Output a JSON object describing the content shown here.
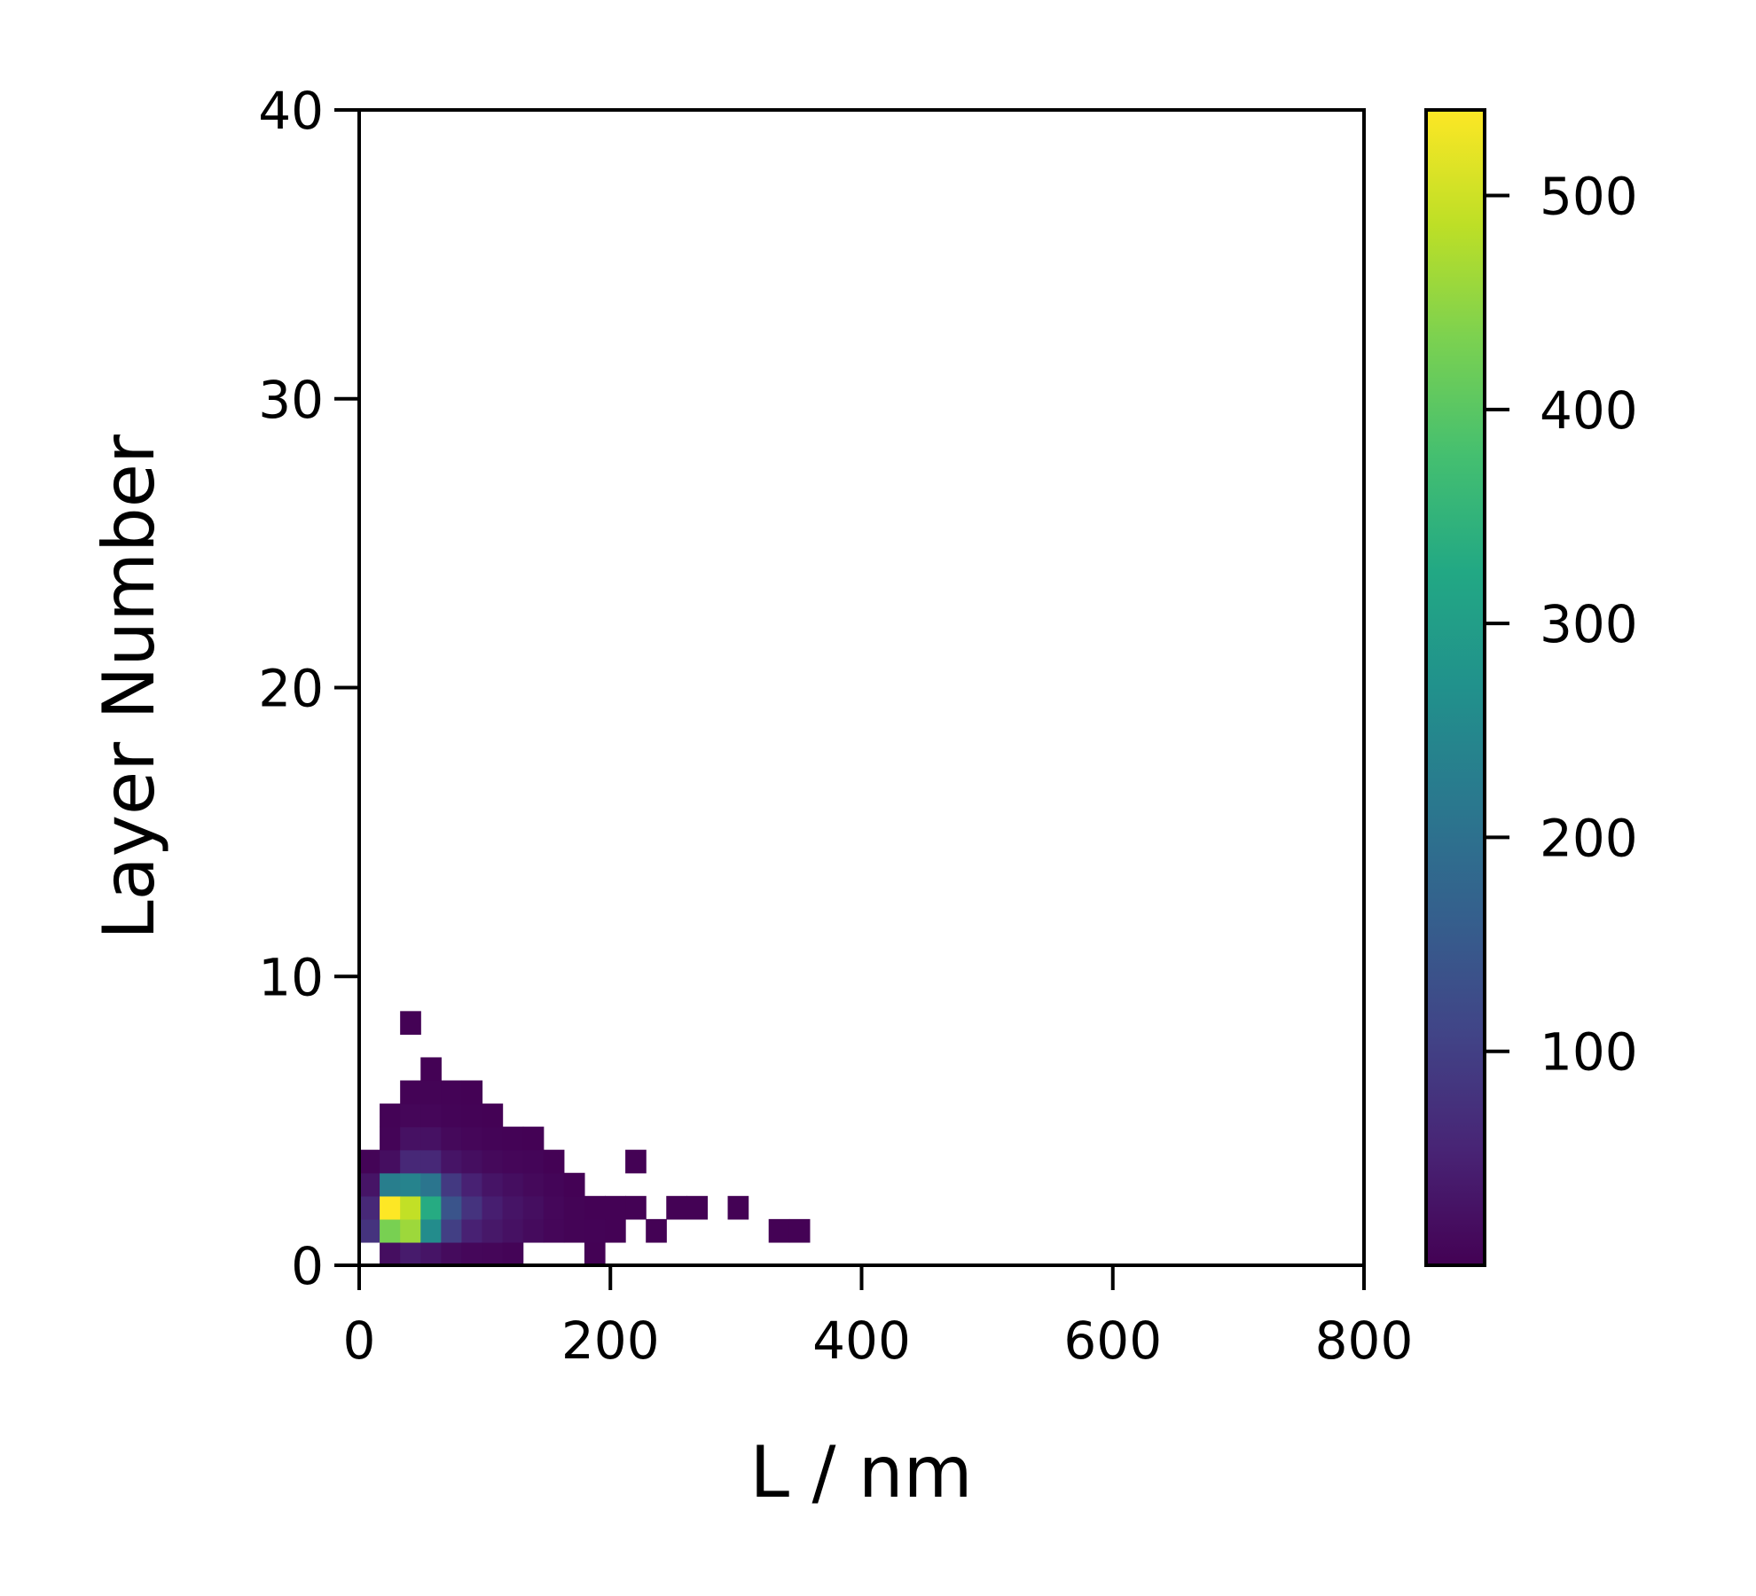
{
  "chart_data": {
    "type": "heatmap",
    "title": "",
    "xlabel": "L / nm",
    "ylabel": "Layer Number",
    "xlim": [
      0,
      800
    ],
    "ylim": [
      0,
      40
    ],
    "x_ticks": [
      0,
      200,
      400,
      600,
      800
    ],
    "x_tick_labels": [
      "0",
      "200",
      "400",
      "600",
      "800"
    ],
    "y_ticks": [
      0,
      10,
      20,
      30,
      40
    ],
    "y_tick_labels": [
      "0",
      "10",
      "20",
      "30",
      "40"
    ],
    "colorbar": {
      "colormap": "viridis",
      "range": [
        0,
        540
      ],
      "ticks": [
        100,
        200,
        300,
        400,
        500
      ],
      "tick_labels": [
        "100",
        "200",
        "300",
        "400",
        "500"
      ]
    },
    "bin_width_x": 16.3,
    "bin_height_y": 0.8,
    "bins": [
      {
        "x": 0,
        "y": 0.8,
        "value": 80
      },
      {
        "x": 0,
        "y": 1.6,
        "value": 60
      },
      {
        "x": 0,
        "y": 2.4,
        "value": 30
      },
      {
        "x": 0,
        "y": 3.2,
        "value": 5
      },
      {
        "x": 16.3,
        "y": 0,
        "value": 20
      },
      {
        "x": 16.3,
        "y": 0.8,
        "value": 430
      },
      {
        "x": 16.3,
        "y": 1.6,
        "value": 540
      },
      {
        "x": 16.3,
        "y": 2.4,
        "value": 230
      },
      {
        "x": 16.3,
        "y": 3.2,
        "value": 20
      },
      {
        "x": 16.3,
        "y": 4.0,
        "value": 5
      },
      {
        "x": 16.3,
        "y": 4.8,
        "value": 3
      },
      {
        "x": 32.6,
        "y": 0,
        "value": 40
      },
      {
        "x": 32.6,
        "y": 0.8,
        "value": 460
      },
      {
        "x": 32.6,
        "y": 1.6,
        "value": 490
      },
      {
        "x": 32.6,
        "y": 2.4,
        "value": 240
      },
      {
        "x": 32.6,
        "y": 3.2,
        "value": 60
      },
      {
        "x": 32.6,
        "y": 4.0,
        "value": 25
      },
      {
        "x": 32.6,
        "y": 4.8,
        "value": 8
      },
      {
        "x": 32.6,
        "y": 5.6,
        "value": 3
      },
      {
        "x": 32.6,
        "y": 8.0,
        "value": 2
      },
      {
        "x": 48.9,
        "y": 0,
        "value": 30
      },
      {
        "x": 48.9,
        "y": 0.8,
        "value": 260
      },
      {
        "x": 48.9,
        "y": 1.6,
        "value": 330
      },
      {
        "x": 48.9,
        "y": 2.4,
        "value": 210
      },
      {
        "x": 48.9,
        "y": 3.2,
        "value": 60
      },
      {
        "x": 48.9,
        "y": 4.0,
        "value": 25
      },
      {
        "x": 48.9,
        "y": 4.8,
        "value": 8
      },
      {
        "x": 48.9,
        "y": 5.6,
        "value": 4
      },
      {
        "x": 48.9,
        "y": 6.4,
        "value": 2
      },
      {
        "x": 65.2,
        "y": 0,
        "value": 15
      },
      {
        "x": 65.2,
        "y": 0.8,
        "value": 100
      },
      {
        "x": 65.2,
        "y": 1.6,
        "value": 140
      },
      {
        "x": 65.2,
        "y": 2.4,
        "value": 90
      },
      {
        "x": 65.2,
        "y": 3.2,
        "value": 30
      },
      {
        "x": 65.2,
        "y": 4.0,
        "value": 12
      },
      {
        "x": 65.2,
        "y": 4.8,
        "value": 5
      },
      {
        "x": 65.2,
        "y": 5.6,
        "value": 3
      },
      {
        "x": 81.5,
        "y": 0,
        "value": 10
      },
      {
        "x": 81.5,
        "y": 0.8,
        "value": 50
      },
      {
        "x": 81.5,
        "y": 1.6,
        "value": 80
      },
      {
        "x": 81.5,
        "y": 2.4,
        "value": 50
      },
      {
        "x": 81.5,
        "y": 3.2,
        "value": 20
      },
      {
        "x": 81.5,
        "y": 4.0,
        "value": 8
      },
      {
        "x": 81.5,
        "y": 4.8,
        "value": 3
      },
      {
        "x": 81.5,
        "y": 5.6,
        "value": 2
      },
      {
        "x": 97.8,
        "y": 0,
        "value": 8
      },
      {
        "x": 97.8,
        "y": 0.8,
        "value": 35
      },
      {
        "x": 97.8,
        "y": 1.6,
        "value": 45
      },
      {
        "x": 97.8,
        "y": 2.4,
        "value": 30
      },
      {
        "x": 97.8,
        "y": 3.2,
        "value": 12
      },
      {
        "x": 97.8,
        "y": 4.0,
        "value": 5
      },
      {
        "x": 97.8,
        "y": 4.8,
        "value": 2
      },
      {
        "x": 114.1,
        "y": 0,
        "value": 5
      },
      {
        "x": 114.1,
        "y": 0.8,
        "value": 25
      },
      {
        "x": 114.1,
        "y": 1.6,
        "value": 30
      },
      {
        "x": 114.1,
        "y": 2.4,
        "value": 20
      },
      {
        "x": 114.1,
        "y": 3.2,
        "value": 8
      },
      {
        "x": 114.1,
        "y": 4.0,
        "value": 3
      },
      {
        "x": 130.4,
        "y": 0.8,
        "value": 15
      },
      {
        "x": 130.4,
        "y": 1.6,
        "value": 20
      },
      {
        "x": 130.4,
        "y": 2.4,
        "value": 12
      },
      {
        "x": 130.4,
        "y": 3.2,
        "value": 6
      },
      {
        "x": 130.4,
        "y": 4.0,
        "value": 2
      },
      {
        "x": 146.7,
        "y": 0.8,
        "value": 8
      },
      {
        "x": 146.7,
        "y": 1.6,
        "value": 10
      },
      {
        "x": 146.7,
        "y": 2.4,
        "value": 6
      },
      {
        "x": 146.7,
        "y": 3.2,
        "value": 2
      },
      {
        "x": 163.0,
        "y": 0.8,
        "value": 4
      },
      {
        "x": 163.0,
        "y": 1.6,
        "value": 4
      },
      {
        "x": 163.0,
        "y": 2.4,
        "value": 2
      },
      {
        "x": 179.3,
        "y": 0,
        "value": 2
      },
      {
        "x": 179.3,
        "y": 0.8,
        "value": 3
      },
      {
        "x": 179.3,
        "y": 1.6,
        "value": 2
      },
      {
        "x": 195.6,
        "y": 0.8,
        "value": 2
      },
      {
        "x": 195.6,
        "y": 1.6,
        "value": 2
      },
      {
        "x": 211.9,
        "y": 1.6,
        "value": 2
      },
      {
        "x": 211.9,
        "y": 3.2,
        "value": 2
      },
      {
        "x": 228.2,
        "y": 0.8,
        "value": 2
      },
      {
        "x": 244.5,
        "y": 1.6,
        "value": 2
      },
      {
        "x": 260.8,
        "y": 1.6,
        "value": 2
      },
      {
        "x": 293.4,
        "y": 1.6,
        "value": 2
      },
      {
        "x": 326.0,
        "y": 0.8,
        "value": 2
      },
      {
        "x": 342.3,
        "y": 0.8,
        "value": 2
      }
    ]
  }
}
